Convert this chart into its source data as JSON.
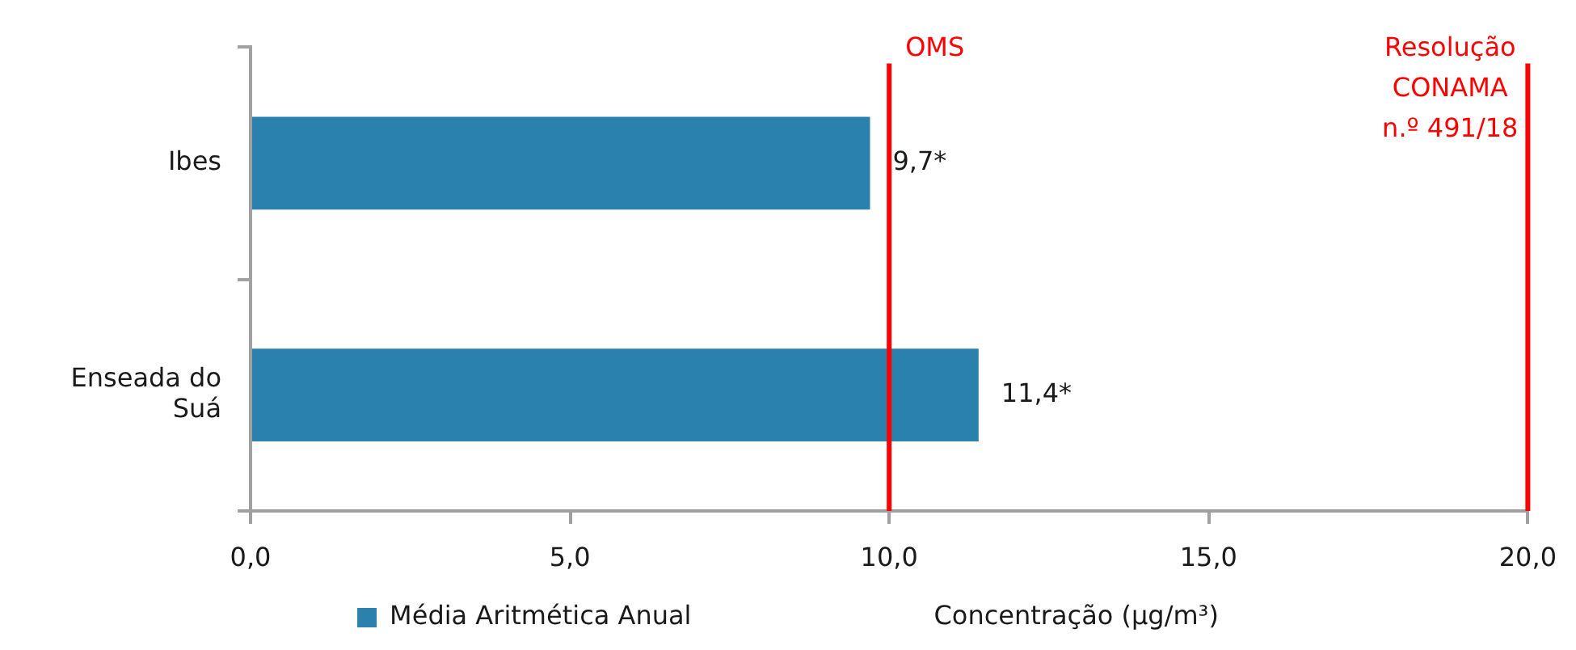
{
  "chart_data": {
    "type": "bar",
    "orientation": "horizontal",
    "categories": [
      "Ibes",
      "Enseada do Suá"
    ],
    "series": [
      {
        "name": "Média Aritmética Anual",
        "color": "#2b81ad",
        "values": [
          9.7,
          11.4
        ],
        "value_labels": [
          "9,7*",
          "11,4*"
        ]
      }
    ],
    "xlabel": "Concentração (µg/m³)",
    "xlim": [
      0,
      20
    ],
    "xticks": [
      {
        "value": 0,
        "label": "0,0"
      },
      {
        "value": 5,
        "label": "5,0"
      },
      {
        "value": 10,
        "label": "10,0"
      },
      {
        "value": 15,
        "label": "15,0"
      },
      {
        "value": 20,
        "label": "20,0"
      }
    ],
    "ref_lines": [
      {
        "axis": "x",
        "value": 10,
        "label": "OMS",
        "color": "#ff0000"
      },
      {
        "axis": "x",
        "value": 20,
        "label": "Resolução CONAMA n.º 491/18",
        "color": "#ff0000"
      }
    ],
    "legend": "bottom"
  }
}
